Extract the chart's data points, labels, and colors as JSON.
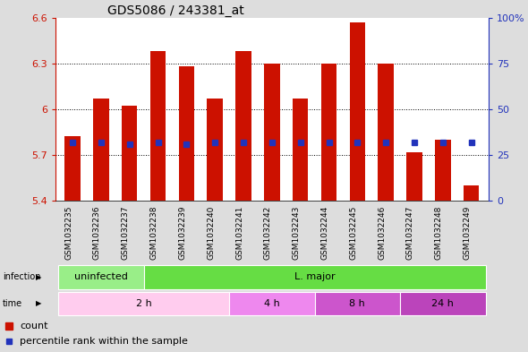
{
  "title": "GDS5086 / 243381_at",
  "samples": [
    "GSM1032235",
    "GSM1032236",
    "GSM1032237",
    "GSM1032238",
    "GSM1032239",
    "GSM1032240",
    "GSM1032241",
    "GSM1032242",
    "GSM1032243",
    "GSM1032244",
    "GSM1032245",
    "GSM1032246",
    "GSM1032247",
    "GSM1032248",
    "GSM1032249"
  ],
  "bar_tops": [
    5.82,
    6.07,
    6.02,
    6.38,
    6.28,
    6.07,
    6.38,
    6.3,
    6.07,
    6.3,
    6.57,
    6.3,
    5.72,
    5.8,
    5.5
  ],
  "bar_bottoms": [
    5.4,
    5.4,
    5.4,
    5.4,
    5.4,
    5.4,
    5.4,
    5.4,
    5.4,
    5.4,
    5.4,
    5.4,
    5.4,
    5.4,
    5.4
  ],
  "percentile_values": [
    5.78,
    5.78,
    5.77,
    5.78,
    5.77,
    5.78,
    5.78,
    5.78,
    5.78,
    5.78,
    5.78,
    5.78,
    5.78,
    5.78,
    5.78
  ],
  "ylim": [
    5.4,
    6.6
  ],
  "yticks": [
    5.4,
    5.7,
    6.0,
    6.3,
    6.6
  ],
  "ytick_labels": [
    "5.4",
    "5.7",
    "6",
    "6.3",
    "6.6"
  ],
  "y2ticks": [
    0,
    25,
    50,
    75,
    100
  ],
  "y2tick_labels": [
    "0",
    "25",
    "50",
    "75",
    "100%"
  ],
  "bar_color": "#CC1100",
  "percentile_color": "#2233BB",
  "infection_labels": [
    {
      "label": "uninfected",
      "start": 0,
      "end": 3,
      "color": "#99EE88"
    },
    {
      "label": "L. major",
      "start": 3,
      "end": 15,
      "color": "#66DD44"
    }
  ],
  "time_labels": [
    {
      "label": "2 h",
      "start": 0,
      "end": 6,
      "color": "#FFCCEE"
    },
    {
      "label": "4 h",
      "start": 6,
      "end": 9,
      "color": "#EE88EE"
    },
    {
      "label": "8 h",
      "start": 9,
      "end": 12,
      "color": "#CC55CC"
    },
    {
      "label": "24 h",
      "start": 12,
      "end": 15,
      "color": "#BB44BB"
    }
  ],
  "fig_bg": "#DDDDDD",
  "plot_bg": "#FFFFFF",
  "xticklabels_bg": "#CCCCCC",
  "title_fontsize": 10,
  "axis_label_fontsize": 7,
  "band_fontsize": 8
}
